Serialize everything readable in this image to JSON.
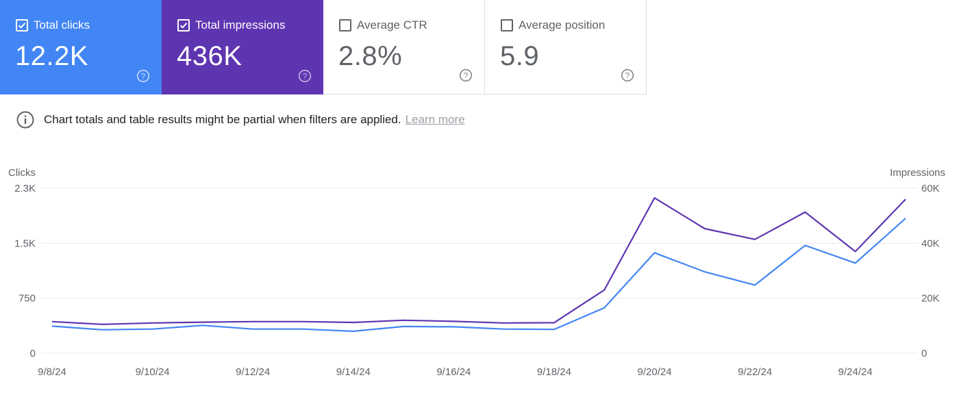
{
  "metrics": {
    "clicks": {
      "label": "Total clicks",
      "value": "12.2K",
      "checked": true
    },
    "impressions": {
      "label": "Total impressions",
      "value": "436K",
      "checked": true
    },
    "ctr": {
      "label": "Average CTR",
      "value": "2.8%",
      "checked": false
    },
    "position": {
      "label": "Average position",
      "value": "5.9",
      "checked": false
    }
  },
  "icons": {
    "help": "help-circle-icon",
    "info": "info-icon",
    "checkbox_checked": "checkbox-checked-icon",
    "checkbox_empty": "checkbox-empty-icon"
  },
  "notice": {
    "text": "Chart totals and table results might be partial when filters are applied.",
    "link": "Learn more"
  },
  "colors": {
    "clicks": "#4285f4",
    "impressions": "#5e35b1"
  },
  "chart_data": {
    "type": "line",
    "x": [
      "9/8/24",
      "9/9/24",
      "9/10/24",
      "9/11/24",
      "9/12/24",
      "9/13/24",
      "9/14/24",
      "9/15/24",
      "9/16/24",
      "9/17/24",
      "9/18/24",
      "9/19/24",
      "9/20/24",
      "9/21/24",
      "9/22/24",
      "9/23/24",
      "9/24/24",
      "9/25/24"
    ],
    "x_tick_labels": [
      "9/8/24",
      "9/10/24",
      "9/12/24",
      "9/14/24",
      "9/16/24",
      "9/18/24",
      "9/20/24",
      "9/22/24",
      "9/24/24"
    ],
    "series": [
      {
        "name": "Clicks",
        "axis": "left",
        "color": "#4285f4",
        "values": [
          370,
          320,
          330,
          380,
          330,
          330,
          300,
          365,
          360,
          330,
          325,
          620,
          1370,
          1110,
          930,
          1470,
          1230,
          1840
        ]
      },
      {
        "name": "Impressions",
        "axis": "right",
        "color": "#5e35b1",
        "values": [
          11500,
          10500,
          11000,
          11300,
          11500,
          11500,
          11200,
          12000,
          11600,
          11000,
          11100,
          23000,
          56500,
          45300,
          41400,
          51300,
          37000,
          56000
        ]
      }
    ],
    "ylabel_left": "Clicks",
    "ylabel_right": "Impressions",
    "left_ticks": [
      {
        "value": 0,
        "label": "0"
      },
      {
        "value": 750,
        "label": "750"
      },
      {
        "value": 1500,
        "label": "1.5K"
      },
      {
        "value": 2250,
        "label": "2.3K"
      }
    ],
    "right_ticks": [
      {
        "value": 0,
        "label": "0"
      },
      {
        "value": 20000,
        "label": "20K"
      },
      {
        "value": 40000,
        "label": "40K"
      },
      {
        "value": 60000,
        "label": "60K"
      }
    ],
    "ylim_left": [
      0,
      2250
    ],
    "ylim_right": [
      0,
      60000
    ],
    "grid": true,
    "legend": "none"
  }
}
